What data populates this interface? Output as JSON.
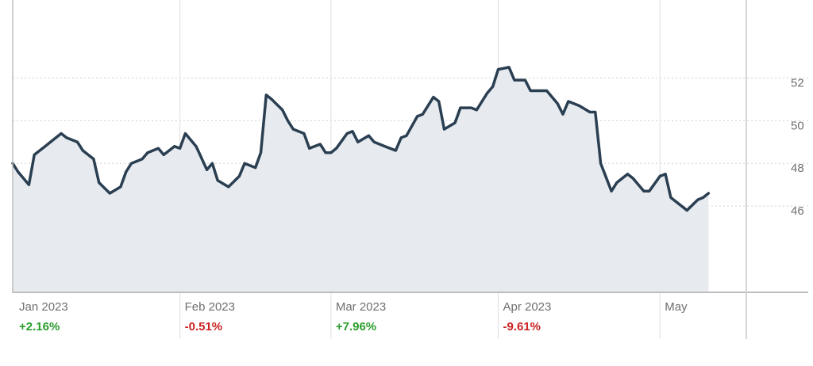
{
  "colors": {
    "line": "#2b3f52",
    "area": "#e7ebef",
    "grid": "#cfcfcf",
    "axis": "#bdbdbd",
    "positive": "#2a9d2a",
    "negative": "#cc2222"
  },
  "chart_data": {
    "type": "area",
    "title": "",
    "xlabel": "",
    "ylabel": "",
    "xlim": [
      "2023-01-01",
      "2023-05-17"
    ],
    "ylim": [
      42,
      55.5
    ],
    "y_ticks": [
      46,
      48,
      50,
      52
    ],
    "y_tick_labels": [
      "46",
      "48",
      "50",
      "52"
    ],
    "y_axis_position": "right",
    "grid": {
      "horizontal": "dotted",
      "vertical": "at month starts"
    },
    "months": [
      {
        "label": "Jan 2023",
        "start": "2023-01-01",
        "change": "+2.16%",
        "direction": "positive"
      },
      {
        "label": "Feb 2023",
        "start": "2023-02-01",
        "change": "-0.51%",
        "direction": "negative"
      },
      {
        "label": "Mar 2023",
        "start": "2023-03-01",
        "change": "+7.96%",
        "direction": "positive"
      },
      {
        "label": "Apr 2023",
        "start": "2023-04-01",
        "change": "-9.61%",
        "direction": "negative"
      },
      {
        "label": "May",
        "start": "2023-05-01",
        "change": "",
        "direction": ""
      }
    ],
    "series": [
      {
        "x": [
          "2023-01-01",
          "2023-01-02",
          "2023-01-04",
          "2023-01-05",
          "2023-01-07",
          "2023-01-08",
          "2023-01-10",
          "2023-01-11",
          "2023-01-13",
          "2023-01-14",
          "2023-01-16",
          "2023-01-17",
          "2023-01-19",
          "2023-01-21",
          "2023-01-22",
          "2023-01-23",
          "2023-01-25",
          "2023-01-26",
          "2023-01-28",
          "2023-01-29",
          "2023-01-31",
          "2023-02-01",
          "2023-02-02",
          "2023-02-04",
          "2023-02-06",
          "2023-02-07",
          "2023-02-08",
          "2023-02-10",
          "2023-02-12",
          "2023-02-13",
          "2023-02-15",
          "2023-02-16",
          "2023-02-17",
          "2023-02-18",
          "2023-02-20",
          "2023-02-21",
          "2023-02-22",
          "2023-02-24",
          "2023-02-25",
          "2023-02-27",
          "2023-02-28",
          "2023-03-01",
          "2023-03-02",
          "2023-03-04",
          "2023-03-05",
          "2023-03-06",
          "2023-03-08",
          "2023-03-09",
          "2023-03-11",
          "2023-03-13",
          "2023-03-14",
          "2023-03-15",
          "2023-03-17",
          "2023-03-18",
          "2023-03-20",
          "2023-03-21",
          "2023-03-22",
          "2023-03-24",
          "2023-03-25",
          "2023-03-27",
          "2023-03-28",
          "2023-03-30",
          "2023-03-31",
          "2023-04-01",
          "2023-04-03",
          "2023-04-04",
          "2023-04-06",
          "2023-04-07",
          "2023-04-09",
          "2023-04-10",
          "2023-04-12",
          "2023-04-13",
          "2023-04-14",
          "2023-04-16",
          "2023-04-18",
          "2023-04-19",
          "2023-04-20",
          "2023-04-22",
          "2023-04-23",
          "2023-04-25",
          "2023-04-26",
          "2023-04-28",
          "2023-04-29",
          "2023-05-01",
          "2023-05-02",
          "2023-05-03",
          "2023-05-05",
          "2023-05-06",
          "2023-05-08",
          "2023-05-09",
          "2023-05-10"
        ],
        "y": [
          48.0,
          47.6,
          47.0,
          48.4,
          48.8,
          49.0,
          49.4,
          49.2,
          49.0,
          48.6,
          48.2,
          47.1,
          46.6,
          46.9,
          47.6,
          48.0,
          48.2,
          48.5,
          48.7,
          48.4,
          48.8,
          48.7,
          49.4,
          48.8,
          47.7,
          48.0,
          47.2,
          46.9,
          47.4,
          48.0,
          47.8,
          48.5,
          51.2,
          51.0,
          50.5,
          50.0,
          49.6,
          49.4,
          48.7,
          48.9,
          48.5,
          48.5,
          48.7,
          49.4,
          49.5,
          49.0,
          49.3,
          49.0,
          48.8,
          48.6,
          49.2,
          49.3,
          50.2,
          50.3,
          51.1,
          50.9,
          49.6,
          49.9,
          50.6,
          50.6,
          50.5,
          51.3,
          51.6,
          52.4,
          52.5,
          51.9,
          51.9,
          51.4,
          51.4,
          51.4,
          50.8,
          50.3,
          50.9,
          50.7,
          50.4,
          50.4,
          48.0,
          46.7,
          47.1,
          47.5,
          47.3,
          46.7,
          46.7,
          47.4,
          47.5,
          46.4,
          46.0,
          45.8,
          46.3,
          46.4,
          46.6
        ]
      }
    ]
  }
}
